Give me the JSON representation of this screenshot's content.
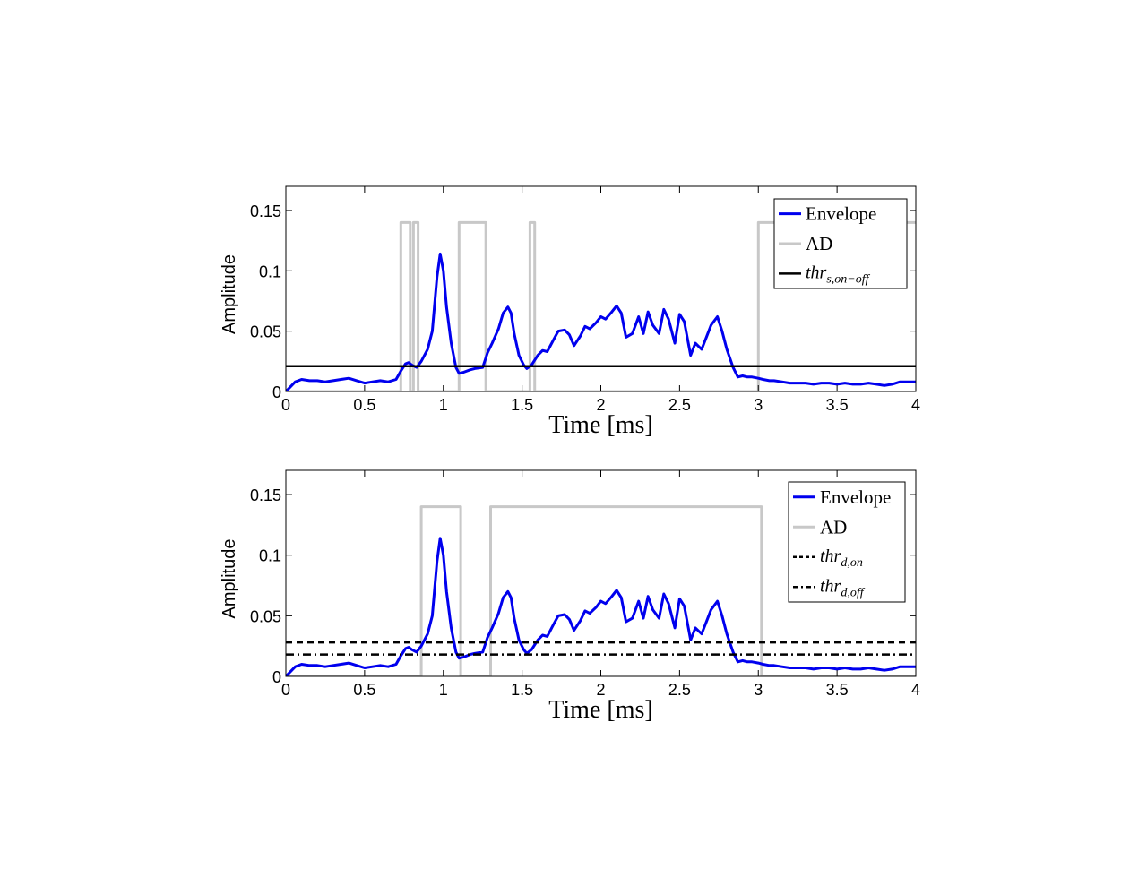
{
  "chart_data": [
    {
      "type": "line",
      "xlabel": "Time [ms]",
      "ylabel": "Amplitude",
      "xlim": [
        0,
        4
      ],
      "ylim": [
        0,
        0.17
      ],
      "xticks": [
        0,
        0.5,
        1,
        1.5,
        2,
        2.5,
        3,
        3.5,
        4
      ],
      "xtick_labels": [
        "0",
        "0.5",
        "1",
        "1.5",
        "2",
        "2.5",
        "3",
        "3.5",
        "4"
      ],
      "yticks": [
        0,
        0.05,
        0.1,
        0.15
      ],
      "ytick_labels": [
        "0",
        "0.05",
        "0.1",
        "0.15"
      ],
      "grid": false,
      "legend_position": "top-right",
      "series": [
        {
          "name": "Envelope",
          "color": "#0000ee",
          "style": "solid",
          "x": [
            0,
            0.03,
            0.06,
            0.1,
            0.15,
            0.2,
            0.25,
            0.3,
            0.35,
            0.4,
            0.45,
            0.5,
            0.55,
            0.6,
            0.65,
            0.7,
            0.73,
            0.76,
            0.78,
            0.8,
            0.83,
            0.86,
            0.9,
            0.93,
            0.96,
            0.98,
            1.0,
            1.02,
            1.05,
            1.08,
            1.1,
            1.13,
            1.17,
            1.2,
            1.25,
            1.28,
            1.31,
            1.35,
            1.38,
            1.41,
            1.43,
            1.45,
            1.48,
            1.51,
            1.53,
            1.56,
            1.6,
            1.63,
            1.66,
            1.7,
            1.73,
            1.77,
            1.8,
            1.83,
            1.87,
            1.9,
            1.93,
            1.97,
            2.0,
            2.03,
            2.07,
            2.1,
            2.13,
            2.16,
            2.2,
            2.24,
            2.27,
            2.3,
            2.33,
            2.37,
            2.4,
            2.43,
            2.47,
            2.5,
            2.53,
            2.57,
            2.6,
            2.64,
            2.67,
            2.7,
            2.74,
            2.77,
            2.8,
            2.84,
            2.87,
            2.9,
            2.93,
            2.96,
            3.0,
            3.03,
            3.07,
            3.1,
            3.15,
            3.2,
            3.25,
            3.3,
            3.35,
            3.4,
            3.45,
            3.5,
            3.55,
            3.6,
            3.65,
            3.7,
            3.75,
            3.8,
            3.85,
            3.9,
            3.95,
            4.0
          ],
          "y": [
            0,
            0.004,
            0.008,
            0.01,
            0.009,
            0.009,
            0.008,
            0.009,
            0.01,
            0.011,
            0.009,
            0.007,
            0.008,
            0.009,
            0.008,
            0.01,
            0.017,
            0.023,
            0.024,
            0.022,
            0.02,
            0.025,
            0.035,
            0.05,
            0.095,
            0.114,
            0.1,
            0.07,
            0.04,
            0.02,
            0.015,
            0.016,
            0.018,
            0.019,
            0.02,
            0.032,
            0.04,
            0.052,
            0.065,
            0.07,
            0.065,
            0.048,
            0.03,
            0.022,
            0.019,
            0.022,
            0.03,
            0.034,
            0.033,
            0.043,
            0.05,
            0.051,
            0.047,
            0.038,
            0.046,
            0.054,
            0.052,
            0.057,
            0.062,
            0.06,
            0.066,
            0.071,
            0.065,
            0.045,
            0.048,
            0.062,
            0.048,
            0.066,
            0.055,
            0.048,
            0.068,
            0.06,
            0.04,
            0.064,
            0.058,
            0.03,
            0.04,
            0.035,
            0.045,
            0.055,
            0.062,
            0.05,
            0.035,
            0.02,
            0.012,
            0.013,
            0.012,
            0.012,
            0.011,
            0.01,
            0.009,
            0.009,
            0.008,
            0.007,
            0.007,
            0.007,
            0.006,
            0.007,
            0.007,
            0.006,
            0.007,
            0.006,
            0.006,
            0.007,
            0.006,
            0.005,
            0.006,
            0.008,
            0.008,
            0.008
          ]
        },
        {
          "name": "AD",
          "color": "#c8c8c8",
          "style": "step",
          "x": [
            0,
            0.73,
            0.73,
            0.79,
            0.79,
            0.81,
            0.81,
            0.84,
            0.84,
            1.1,
            1.1,
            1.27,
            1.27,
            1.55,
            1.55,
            1.58,
            1.58,
            3.0,
            3.0,
            4.0
          ],
          "y": [
            0,
            0,
            0.14,
            0.14,
            0,
            0,
            0.14,
            0.14,
            0,
            0,
            0.14,
            0.14,
            0,
            0,
            0.14,
            0.14,
            0,
            0,
            0.14,
            0.14
          ]
        },
        {
          "name": "thr_s,on-off",
          "color": "#000000",
          "style": "solid",
          "x": [
            0,
            4
          ],
          "y": [
            0.021,
            0.021
          ]
        }
      ],
      "legend": [
        {
          "text": "Envelope",
          "math": false,
          "base": "",
          "sub": ""
        },
        {
          "text": "AD",
          "math": false,
          "base": "",
          "sub": ""
        },
        {
          "text": "",
          "math": true,
          "base": "thr",
          "sub": "s,on−off"
        }
      ]
    },
    {
      "type": "line",
      "xlabel": "Time [ms]",
      "ylabel": "Amplitude",
      "xlim": [
        0,
        4
      ],
      "ylim": [
        0,
        0.17
      ],
      "xticks": [
        0,
        0.5,
        1,
        1.5,
        2,
        2.5,
        3,
        3.5,
        4
      ],
      "xtick_labels": [
        "0",
        "0.5",
        "1",
        "1.5",
        "2",
        "2.5",
        "3",
        "3.5",
        "4"
      ],
      "yticks": [
        0,
        0.05,
        0.1,
        0.15
      ],
      "ytick_labels": [
        "0",
        "0.05",
        "0.1",
        "0.15"
      ],
      "grid": false,
      "legend_position": "top-right",
      "series": [
        {
          "name": "Envelope",
          "color": "#0000ee",
          "style": "solid",
          "x": [
            0,
            0.03,
            0.06,
            0.1,
            0.15,
            0.2,
            0.25,
            0.3,
            0.35,
            0.4,
            0.45,
            0.5,
            0.55,
            0.6,
            0.65,
            0.7,
            0.73,
            0.76,
            0.78,
            0.8,
            0.83,
            0.86,
            0.9,
            0.93,
            0.96,
            0.98,
            1.0,
            1.02,
            1.05,
            1.08,
            1.1,
            1.13,
            1.17,
            1.2,
            1.25,
            1.28,
            1.31,
            1.35,
            1.38,
            1.41,
            1.43,
            1.45,
            1.48,
            1.51,
            1.53,
            1.56,
            1.6,
            1.63,
            1.66,
            1.7,
            1.73,
            1.77,
            1.8,
            1.83,
            1.87,
            1.9,
            1.93,
            1.97,
            2.0,
            2.03,
            2.07,
            2.1,
            2.13,
            2.16,
            2.2,
            2.24,
            2.27,
            2.3,
            2.33,
            2.37,
            2.4,
            2.43,
            2.47,
            2.5,
            2.53,
            2.57,
            2.6,
            2.64,
            2.67,
            2.7,
            2.74,
            2.77,
            2.8,
            2.84,
            2.87,
            2.9,
            2.93,
            2.96,
            3.0,
            3.03,
            3.07,
            3.1,
            3.15,
            3.2,
            3.25,
            3.3,
            3.35,
            3.4,
            3.45,
            3.5,
            3.55,
            3.6,
            3.65,
            3.7,
            3.75,
            3.8,
            3.85,
            3.9,
            3.95,
            4.0
          ],
          "y": [
            0,
            0.004,
            0.008,
            0.01,
            0.009,
            0.009,
            0.008,
            0.009,
            0.01,
            0.011,
            0.009,
            0.007,
            0.008,
            0.009,
            0.008,
            0.01,
            0.017,
            0.023,
            0.024,
            0.022,
            0.02,
            0.025,
            0.035,
            0.05,
            0.095,
            0.114,
            0.1,
            0.07,
            0.04,
            0.02,
            0.015,
            0.016,
            0.018,
            0.019,
            0.02,
            0.032,
            0.04,
            0.052,
            0.065,
            0.07,
            0.065,
            0.048,
            0.03,
            0.022,
            0.019,
            0.022,
            0.03,
            0.034,
            0.033,
            0.043,
            0.05,
            0.051,
            0.047,
            0.038,
            0.046,
            0.054,
            0.052,
            0.057,
            0.062,
            0.06,
            0.066,
            0.071,
            0.065,
            0.045,
            0.048,
            0.062,
            0.048,
            0.066,
            0.055,
            0.048,
            0.068,
            0.06,
            0.04,
            0.064,
            0.058,
            0.03,
            0.04,
            0.035,
            0.045,
            0.055,
            0.062,
            0.05,
            0.035,
            0.02,
            0.012,
            0.013,
            0.012,
            0.012,
            0.011,
            0.01,
            0.009,
            0.009,
            0.008,
            0.007,
            0.007,
            0.007,
            0.006,
            0.007,
            0.007,
            0.006,
            0.007,
            0.006,
            0.006,
            0.007,
            0.006,
            0.005,
            0.006,
            0.008,
            0.008,
            0.008
          ]
        },
        {
          "name": "AD",
          "color": "#c8c8c8",
          "style": "step",
          "x": [
            0,
            0.86,
            0.86,
            1.11,
            1.11,
            1.3,
            1.3,
            3.02,
            3.02,
            4.0
          ],
          "y": [
            0,
            0,
            0.14,
            0.14,
            0,
            0,
            0.14,
            0.14,
            0,
            0
          ]
        },
        {
          "name": "thr_d,on",
          "color": "#000000",
          "style": "dashed",
          "x": [
            0,
            4
          ],
          "y": [
            0.028,
            0.028
          ]
        },
        {
          "name": "thr_d,off",
          "color": "#000000",
          "style": "dashdot",
          "x": [
            0,
            4
          ],
          "y": [
            0.018,
            0.018
          ]
        }
      ],
      "legend": [
        {
          "text": "Envelope",
          "math": false,
          "base": "",
          "sub": ""
        },
        {
          "text": "AD",
          "math": false,
          "base": "",
          "sub": ""
        },
        {
          "text": "",
          "math": true,
          "base": "thr",
          "sub": "d,on"
        },
        {
          "text": "",
          "math": true,
          "base": "thr",
          "sub": "d,off"
        }
      ]
    }
  ]
}
